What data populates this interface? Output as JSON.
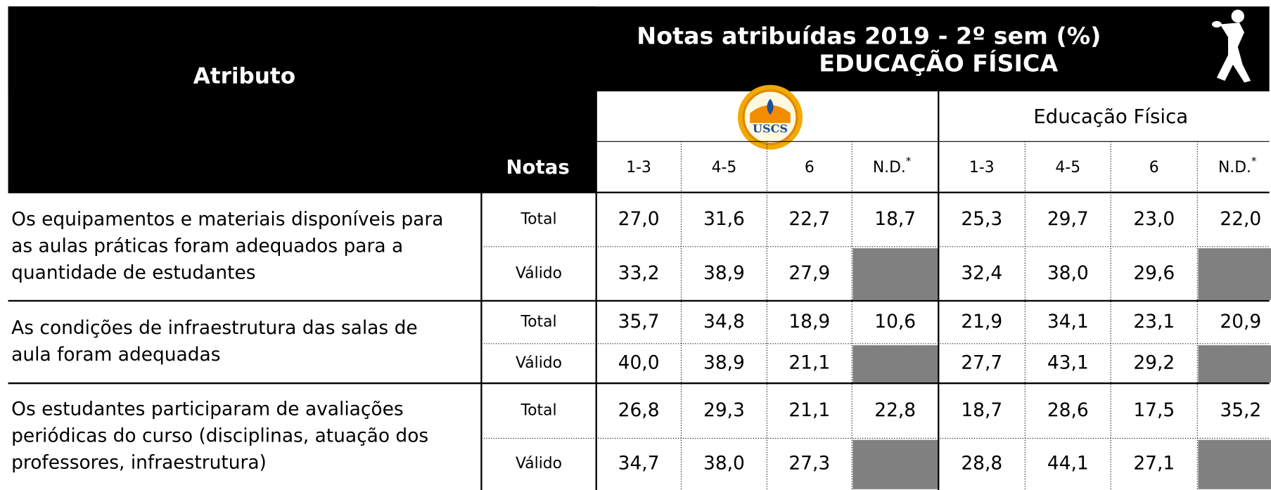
{
  "header": {
    "attribute_label": "Atributo",
    "title_lines": [
      "Notas atribuídas 2019 - 2º sem (%)",
      "EDUCAÇÃO FÍSICA"
    ],
    "notas_label": "Notas"
  },
  "groups": [
    {
      "logo_text": "USCS"
    },
    {
      "name": "Educação Física"
    }
  ],
  "columns": [
    "1-3",
    "4-5",
    "6",
    {
      "label": "N.D.",
      "mark": "*"
    }
  ],
  "rows": [
    {
      "attribute": [
        "Os equipamentos e materiais disponíveis para",
        "as aulas práticas foram adequados para a",
        "quantidade de estudantes"
      ],
      "subrows": [
        {
          "label": "Total",
          "values": [
            "27,0",
            "31,6",
            "22,7",
            "18,7",
            "25,3",
            "29,7",
            "23,0",
            "22,0"
          ]
        },
        {
          "label": "Válido",
          "values": [
            "33,2",
            "38,9",
            "27,9",
            null,
            "32,4",
            "38,0",
            "29,6",
            null
          ]
        }
      ]
    },
    {
      "attribute": [
        "As condições de infraestrutura das salas de",
        "aula foram adequadas"
      ],
      "subrows": [
        {
          "label": "Total",
          "values": [
            "35,7",
            "34,8",
            "18,9",
            "10,6",
            "21,9",
            "34,1",
            "23,1",
            "20,9"
          ]
        },
        {
          "label": "Válido",
          "values": [
            "40,0",
            "38,9",
            "21,1",
            null,
            "27,7",
            "43,1",
            "29,2",
            null
          ]
        }
      ]
    },
    {
      "attribute": [
        "Os estudantes participaram de avaliações",
        "periódicas do curso (disciplinas, atuação dos",
        "professores, infraestrutura)"
      ],
      "subrows": [
        {
          "label": "Total",
          "values": [
            "26,8",
            "29,3",
            "21,1",
            "22,8",
            "18,7",
            "28,6",
            "17,5",
            "35,2"
          ]
        },
        {
          "label": "Válido",
          "values": [
            "34,7",
            "38,0",
            "27,3",
            null,
            "28,8",
            "44,1",
            "27,1",
            null
          ]
        }
      ]
    }
  ]
}
